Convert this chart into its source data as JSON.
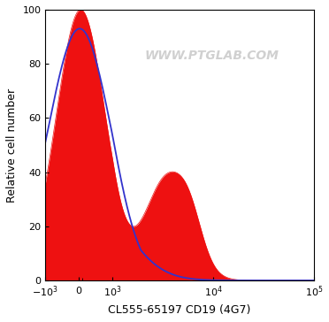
{
  "xlabel": "CL555-65197 CD19 (4G7)",
  "ylabel": "Relative cell number",
  "watermark": "WWW.PTGLAB.COM",
  "xlim": [
    -1000,
    100000
  ],
  "ylim": [
    0,
    100
  ],
  "yticks": [
    0,
    20,
    40,
    60,
    80,
    100
  ],
  "blue_color": "#3333cc",
  "red_color": "#ee1111",
  "background_color": "#ffffff",
  "linthresh": 1000,
  "xlabel_fontsize": 9,
  "ylabel_fontsize": 9,
  "tick_fontsize": 8,
  "watermark_fontsize": 10
}
